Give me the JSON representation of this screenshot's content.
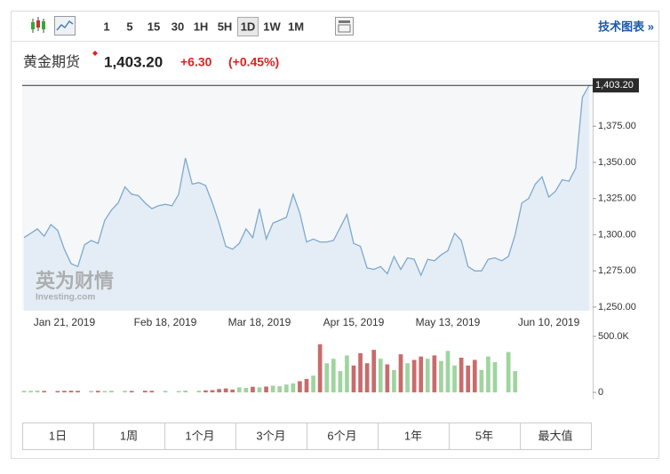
{
  "toolbar": {
    "intervals": [
      "1",
      "5",
      "15",
      "30",
      "1H",
      "5H",
      "1D",
      "1W",
      "1M"
    ],
    "active": 6,
    "technical": "技术图表 »"
  },
  "header": {
    "name": "黄金期货",
    "change": "+6.30",
    "change_pct": "(+0.45%)"
  },
  "watermark": {
    "brand": "英为财情",
    "site": "Investing.com"
  },
  "ranges": [
    "1日",
    "1周",
    "1个月",
    "3个月",
    "6个月",
    "1年",
    "5年",
    "最大值"
  ],
  "chart_data": [
    {
      "type": "area",
      "color": "#7ea9cf",
      "fill": "#e4edf5",
      "categories": [
        null,
        null,
        null,
        null,
        null,
        null,
        "Jan 21, 2019",
        null,
        null,
        null,
        null,
        null,
        null,
        null,
        null,
        null,
        null,
        null,
        null,
        null,
        null,
        "Feb 18, 2019",
        null,
        null,
        null,
        null,
        null,
        null,
        null,
        null,
        null,
        null,
        null,
        null,
        null,
        "Mar 18, 2019",
        null,
        null,
        null,
        null,
        null,
        null,
        null,
        null,
        null,
        null,
        null,
        null,
        null,
        "Apr 15, 2019",
        null,
        null,
        null,
        null,
        null,
        null,
        null,
        null,
        null,
        null,
        null,
        null,
        null,
        "May 13, 2019",
        null,
        null,
        null,
        null,
        null,
        null,
        null,
        null,
        null,
        null,
        null,
        null,
        null,
        null,
        "Jun 10, 2019",
        null,
        null,
        null,
        null,
        null,
        null
      ],
      "values": [
        1298,
        1301,
        1304,
        1299,
        1307,
        1303,
        1290,
        1280,
        1278,
        1293,
        1296,
        1294,
        1310,
        1317,
        1322,
        1333,
        1328,
        1327,
        1322,
        1318,
        1320,
        1321,
        1320,
        1328,
        1353,
        1335,
        1336,
        1334,
        1322,
        1308,
        1292,
        1290,
        1294,
        1304,
        1298,
        1318,
        1297,
        1308,
        1310,
        1312,
        1328,
        1315,
        1295,
        1297,
        1295,
        1295,
        1296,
        1305,
        1314,
        1294,
        1292,
        1277,
        1276,
        1278,
        1273,
        1285,
        1276,
        1284,
        1283,
        1272,
        1283,
        1282,
        1286,
        1289,
        1301,
        1296,
        1278,
        1275,
        1275,
        1283,
        1284,
        1282,
        1285,
        1300,
        1322,
        1325,
        1335,
        1340,
        1326,
        1330,
        1338,
        1337,
        1346,
        1395,
        1403.2
      ],
      "ylim": [
        1247.5,
        1407
      ],
      "yticks": [
        {
          "value": 1250,
          "label": "1,250.00"
        },
        {
          "value": 1275,
          "label": "1,275.00"
        },
        {
          "value": 1300,
          "label": "1,300.00"
        },
        {
          "value": 1325,
          "label": "1,325.00"
        },
        {
          "value": 1350,
          "label": "1,350.00"
        },
        {
          "value": 1375,
          "label": "1,375.00"
        }
      ],
      "last_price": {
        "value": 1403.2,
        "label": "1,403.20"
      }
    },
    {
      "type": "bar",
      "up_color": "#9fd49f",
      "down_color": "#c96b6b",
      "values": [
        14000,
        14000,
        15000,
        13000,
        null,
        12000,
        14000,
        15000,
        14000,
        null,
        13000,
        14000,
        12000,
        15000,
        null,
        14000,
        13000,
        null,
        15000,
        14000,
        null,
        14000,
        null,
        12000,
        16000,
        null,
        15000,
        18000,
        20000,
        30000,
        35000,
        25000,
        45000,
        40000,
        50000,
        45000,
        52000,
        60000,
        55000,
        70000,
        80000,
        100000,
        120000,
        150000,
        430000,
        260000,
        300000,
        190000,
        330000,
        240000,
        350000,
        260000,
        380000,
        300000,
        250000,
        200000,
        340000,
        260000,
        290000,
        320000,
        300000,
        330000,
        280000,
        370000,
        240000,
        310000,
        240000,
        290000,
        200000,
        320000,
        270000,
        null,
        360000,
        190000,
        null,
        null,
        null,
        null,
        null,
        null,
        null,
        null,
        null,
        null,
        null
      ],
      "ylim": [
        -63000,
        571000
      ],
      "yticks": [
        0,
        {
          "value": 500000,
          "label": "500.0K"
        }
      ]
    }
  ]
}
